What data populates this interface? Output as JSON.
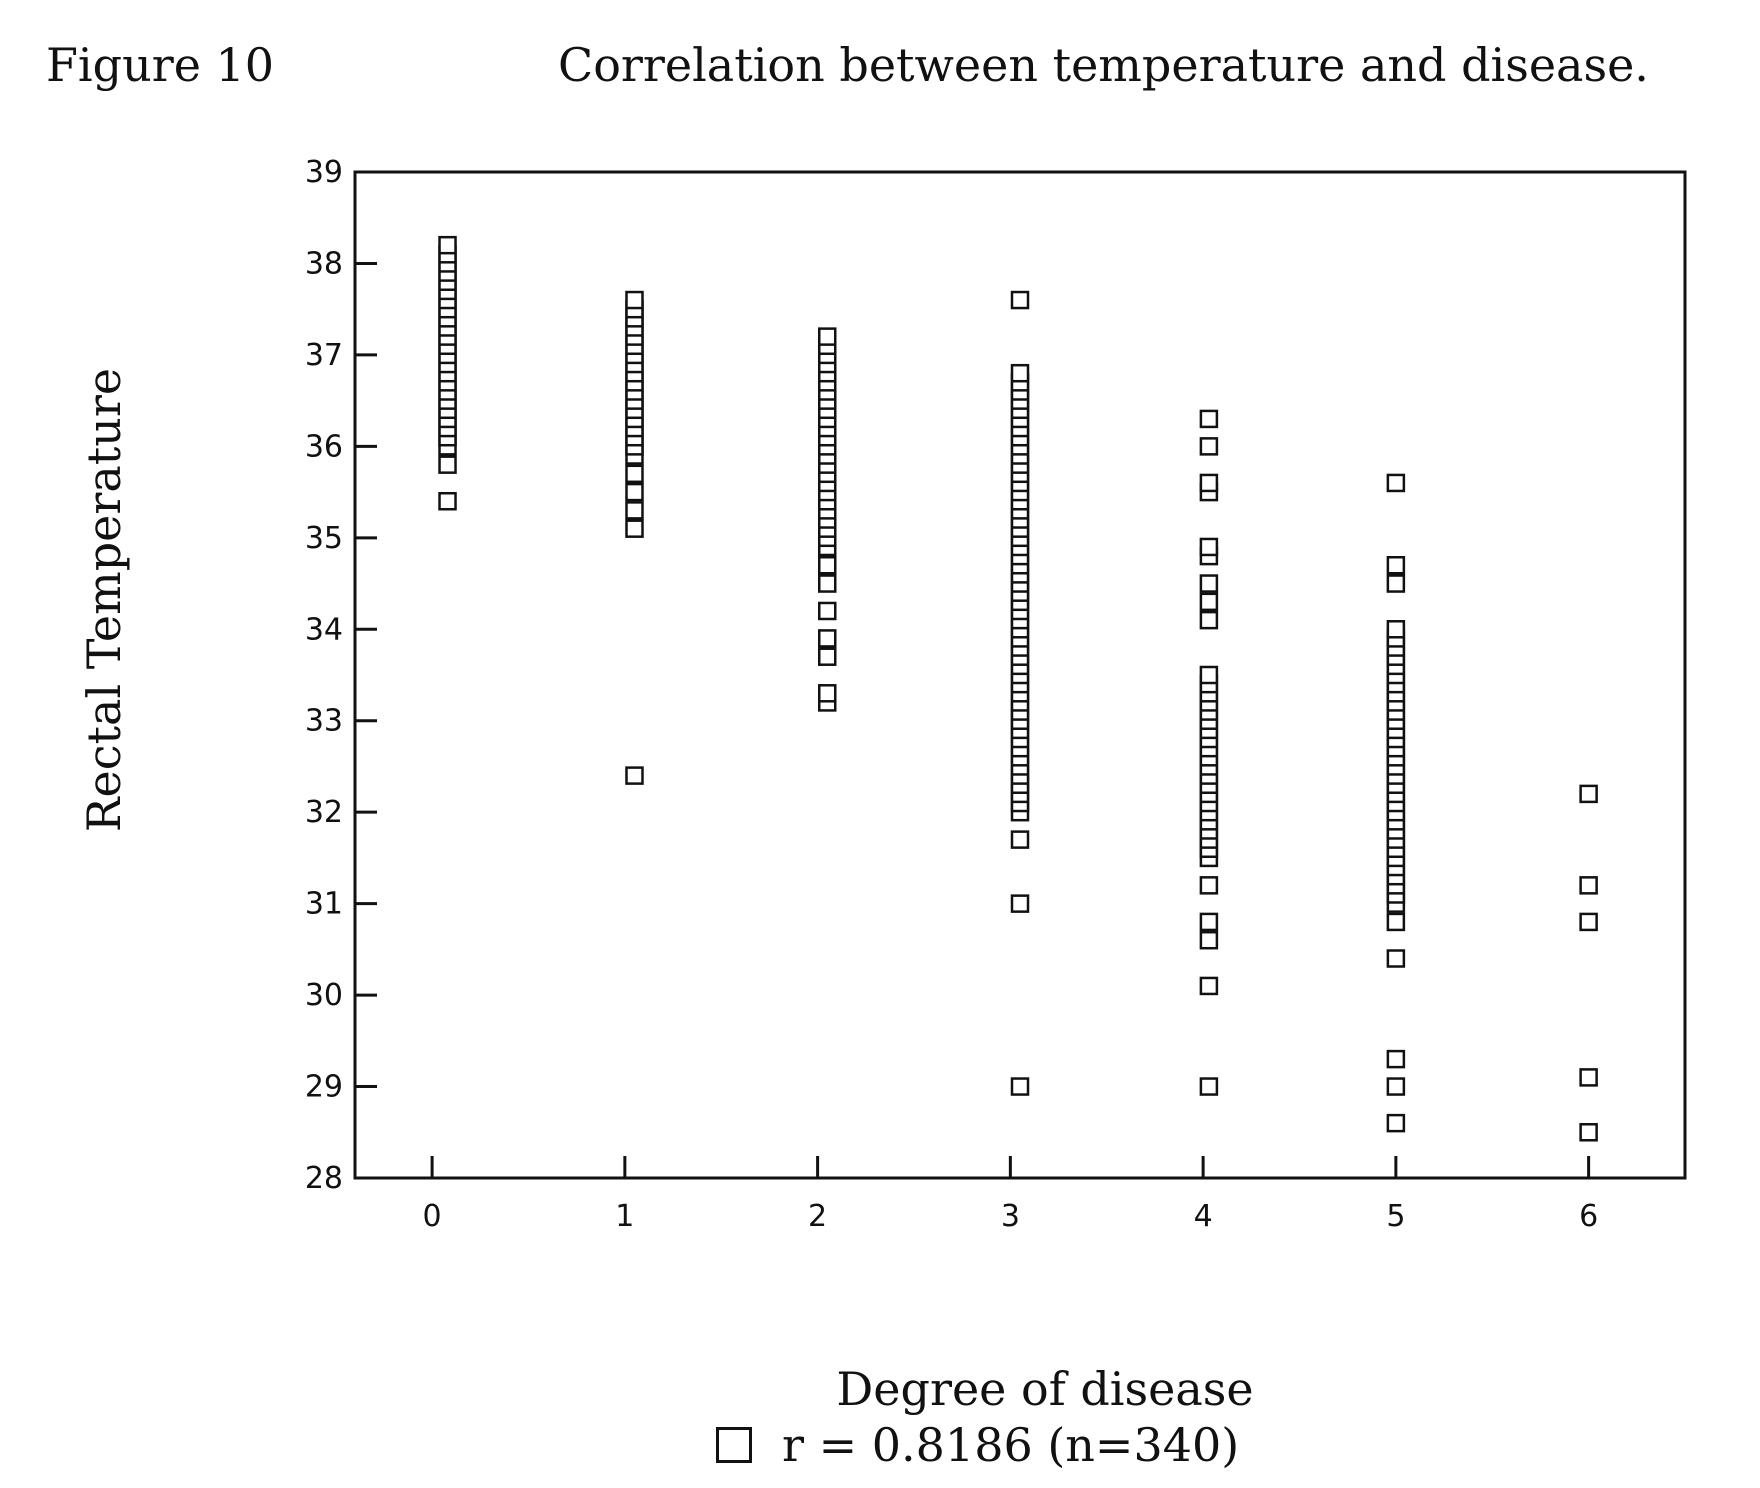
{
  "figure_label": "Figure 10",
  "chart_data": {
    "type": "scatter",
    "title": "Correlation between temperature and disease.",
    "xlabel": "Degree of disease",
    "ylabel": "Rectal Temperature",
    "xlim": [
      -0.4,
      6.5
    ],
    "ylim": [
      28,
      39
    ],
    "xticks": [
      0,
      1,
      2,
      3,
      4,
      5,
      6
    ],
    "yticks": [
      28,
      29,
      30,
      31,
      32,
      33,
      34,
      35,
      36,
      37,
      38,
      39
    ],
    "grid": false,
    "legend": {
      "label": "r = 0.8186 (n=340)",
      "position": "bottom-center"
    },
    "series": [
      {
        "marker": "open-square",
        "points": [
          [
            0.08,
            35.4
          ],
          [
            0.08,
            35.8
          ],
          [
            0.08,
            36.0
          ],
          [
            0.08,
            36.1
          ],
          [
            0.08,
            36.2
          ],
          [
            0.08,
            36.3
          ],
          [
            0.08,
            36.4
          ],
          [
            0.08,
            36.5
          ],
          [
            0.08,
            36.6
          ],
          [
            0.08,
            36.7
          ],
          [
            0.08,
            36.8
          ],
          [
            0.08,
            36.9
          ],
          [
            0.08,
            37.0
          ],
          [
            0.08,
            37.1
          ],
          [
            0.08,
            37.2
          ],
          [
            0.08,
            37.3
          ],
          [
            0.08,
            37.4
          ],
          [
            0.08,
            37.5
          ],
          [
            0.08,
            37.6
          ],
          [
            0.08,
            37.7
          ],
          [
            0.08,
            37.8
          ],
          [
            0.08,
            37.9
          ],
          [
            0.08,
            38.0
          ],
          [
            0.08,
            38.1
          ],
          [
            0.08,
            38.2
          ],
          [
            1.05,
            32.4
          ],
          [
            1.05,
            35.1
          ],
          [
            1.05,
            35.3
          ],
          [
            1.05,
            35.5
          ],
          [
            1.05,
            35.7
          ],
          [
            1.05,
            35.9
          ],
          [
            1.05,
            36.0
          ],
          [
            1.05,
            36.1
          ],
          [
            1.05,
            36.2
          ],
          [
            1.05,
            36.3
          ],
          [
            1.05,
            36.4
          ],
          [
            1.05,
            36.5
          ],
          [
            1.05,
            36.6
          ],
          [
            1.05,
            36.7
          ],
          [
            1.05,
            36.8
          ],
          [
            1.05,
            36.9
          ],
          [
            1.05,
            37.0
          ],
          [
            1.05,
            37.1
          ],
          [
            1.05,
            37.2
          ],
          [
            1.05,
            37.3
          ],
          [
            1.05,
            37.4
          ],
          [
            1.05,
            37.5
          ],
          [
            1.05,
            37.6
          ],
          [
            2.05,
            33.2
          ],
          [
            2.05,
            33.3
          ],
          [
            2.05,
            33.7
          ],
          [
            2.05,
            33.9
          ],
          [
            2.05,
            34.2
          ],
          [
            2.05,
            34.5
          ],
          [
            2.05,
            34.7
          ],
          [
            2.05,
            34.9
          ],
          [
            2.05,
            35.0
          ],
          [
            2.05,
            35.1
          ],
          [
            2.05,
            35.2
          ],
          [
            2.05,
            35.3
          ],
          [
            2.05,
            35.4
          ],
          [
            2.05,
            35.5
          ],
          [
            2.05,
            35.6
          ],
          [
            2.05,
            35.7
          ],
          [
            2.05,
            35.8
          ],
          [
            2.05,
            35.9
          ],
          [
            2.05,
            36.0
          ],
          [
            2.05,
            36.1
          ],
          [
            2.05,
            36.2
          ],
          [
            2.05,
            36.3
          ],
          [
            2.05,
            36.4
          ],
          [
            2.05,
            36.5
          ],
          [
            2.05,
            36.6
          ],
          [
            2.05,
            36.7
          ],
          [
            2.05,
            36.8
          ],
          [
            2.05,
            36.9
          ],
          [
            2.05,
            37.0
          ],
          [
            2.05,
            37.1
          ],
          [
            2.05,
            37.2
          ],
          [
            3.05,
            29.0
          ],
          [
            3.05,
            31.0
          ],
          [
            3.05,
            31.7
          ],
          [
            3.05,
            32.0
          ],
          [
            3.05,
            32.1
          ],
          [
            3.05,
            32.2
          ],
          [
            3.05,
            32.3
          ],
          [
            3.05,
            32.4
          ],
          [
            3.05,
            32.5
          ],
          [
            3.05,
            32.6
          ],
          [
            3.05,
            32.7
          ],
          [
            3.05,
            32.8
          ],
          [
            3.05,
            32.9
          ],
          [
            3.05,
            33.0
          ],
          [
            3.05,
            33.1
          ],
          [
            3.05,
            33.2
          ],
          [
            3.05,
            33.3
          ],
          [
            3.05,
            33.4
          ],
          [
            3.05,
            33.5
          ],
          [
            3.05,
            33.6
          ],
          [
            3.05,
            33.7
          ],
          [
            3.05,
            33.8
          ],
          [
            3.05,
            33.9
          ],
          [
            3.05,
            34.0
          ],
          [
            3.05,
            34.1
          ],
          [
            3.05,
            34.2
          ],
          [
            3.05,
            34.3
          ],
          [
            3.05,
            34.4
          ],
          [
            3.05,
            34.5
          ],
          [
            3.05,
            34.6
          ],
          [
            3.05,
            34.7
          ],
          [
            3.05,
            34.8
          ],
          [
            3.05,
            34.9
          ],
          [
            3.05,
            35.0
          ],
          [
            3.05,
            35.1
          ],
          [
            3.05,
            35.2
          ],
          [
            3.05,
            35.3
          ],
          [
            3.05,
            35.4
          ],
          [
            3.05,
            35.5
          ],
          [
            3.05,
            35.6
          ],
          [
            3.05,
            35.7
          ],
          [
            3.05,
            35.8
          ],
          [
            3.05,
            35.9
          ],
          [
            3.05,
            36.0
          ],
          [
            3.05,
            36.1
          ],
          [
            3.05,
            36.2
          ],
          [
            3.05,
            36.3
          ],
          [
            3.05,
            36.4
          ],
          [
            3.05,
            36.5
          ],
          [
            3.05,
            36.6
          ],
          [
            3.05,
            36.7
          ],
          [
            3.05,
            36.8
          ],
          [
            3.05,
            37.6
          ],
          [
            4.03,
            29.0
          ],
          [
            4.03,
            30.1
          ],
          [
            4.03,
            30.6
          ],
          [
            4.03,
            30.8
          ],
          [
            4.03,
            31.2
          ],
          [
            4.03,
            31.5
          ],
          [
            4.03,
            31.6
          ],
          [
            4.03,
            31.7
          ],
          [
            4.03,
            31.8
          ],
          [
            4.03,
            31.9
          ],
          [
            4.03,
            32.0
          ],
          [
            4.03,
            32.1
          ],
          [
            4.03,
            32.2
          ],
          [
            4.03,
            32.3
          ],
          [
            4.03,
            32.4
          ],
          [
            4.03,
            32.5
          ],
          [
            4.03,
            32.6
          ],
          [
            4.03,
            32.7
          ],
          [
            4.03,
            32.8
          ],
          [
            4.03,
            32.9
          ],
          [
            4.03,
            33.0
          ],
          [
            4.03,
            33.1
          ],
          [
            4.03,
            33.2
          ],
          [
            4.03,
            33.3
          ],
          [
            4.03,
            33.4
          ],
          [
            4.03,
            33.5
          ],
          [
            4.03,
            34.1
          ],
          [
            4.03,
            34.3
          ],
          [
            4.03,
            34.5
          ],
          [
            4.03,
            34.8
          ],
          [
            4.03,
            34.9
          ],
          [
            4.03,
            35.5
          ],
          [
            4.03,
            35.6
          ],
          [
            4.03,
            36.0
          ],
          [
            4.03,
            36.3
          ],
          [
            5.0,
            28.6
          ],
          [
            5.0,
            29.0
          ],
          [
            5.0,
            29.3
          ],
          [
            5.0,
            30.4
          ],
          [
            5.0,
            30.8
          ],
          [
            5.0,
            31.0
          ],
          [
            5.0,
            31.1
          ],
          [
            5.0,
            31.2
          ],
          [
            5.0,
            31.3
          ],
          [
            5.0,
            31.4
          ],
          [
            5.0,
            31.5
          ],
          [
            5.0,
            31.6
          ],
          [
            5.0,
            31.7
          ],
          [
            5.0,
            31.8
          ],
          [
            5.0,
            31.9
          ],
          [
            5.0,
            32.0
          ],
          [
            5.0,
            32.1
          ],
          [
            5.0,
            32.2
          ],
          [
            5.0,
            32.3
          ],
          [
            5.0,
            32.4
          ],
          [
            5.0,
            32.5
          ],
          [
            5.0,
            32.6
          ],
          [
            5.0,
            32.7
          ],
          [
            5.0,
            32.8
          ],
          [
            5.0,
            32.9
          ],
          [
            5.0,
            33.0
          ],
          [
            5.0,
            33.1
          ],
          [
            5.0,
            33.2
          ],
          [
            5.0,
            33.3
          ],
          [
            5.0,
            33.4
          ],
          [
            5.0,
            33.5
          ],
          [
            5.0,
            33.6
          ],
          [
            5.0,
            33.7
          ],
          [
            5.0,
            33.8
          ],
          [
            5.0,
            33.9
          ],
          [
            5.0,
            34.0
          ],
          [
            5.0,
            34.5
          ],
          [
            5.0,
            34.7
          ],
          [
            5.0,
            35.6
          ],
          [
            6.0,
            28.5
          ],
          [
            6.0,
            29.1
          ],
          [
            6.0,
            30.8
          ],
          [
            6.0,
            31.2
          ],
          [
            6.0,
            32.2
          ]
        ]
      }
    ]
  }
}
